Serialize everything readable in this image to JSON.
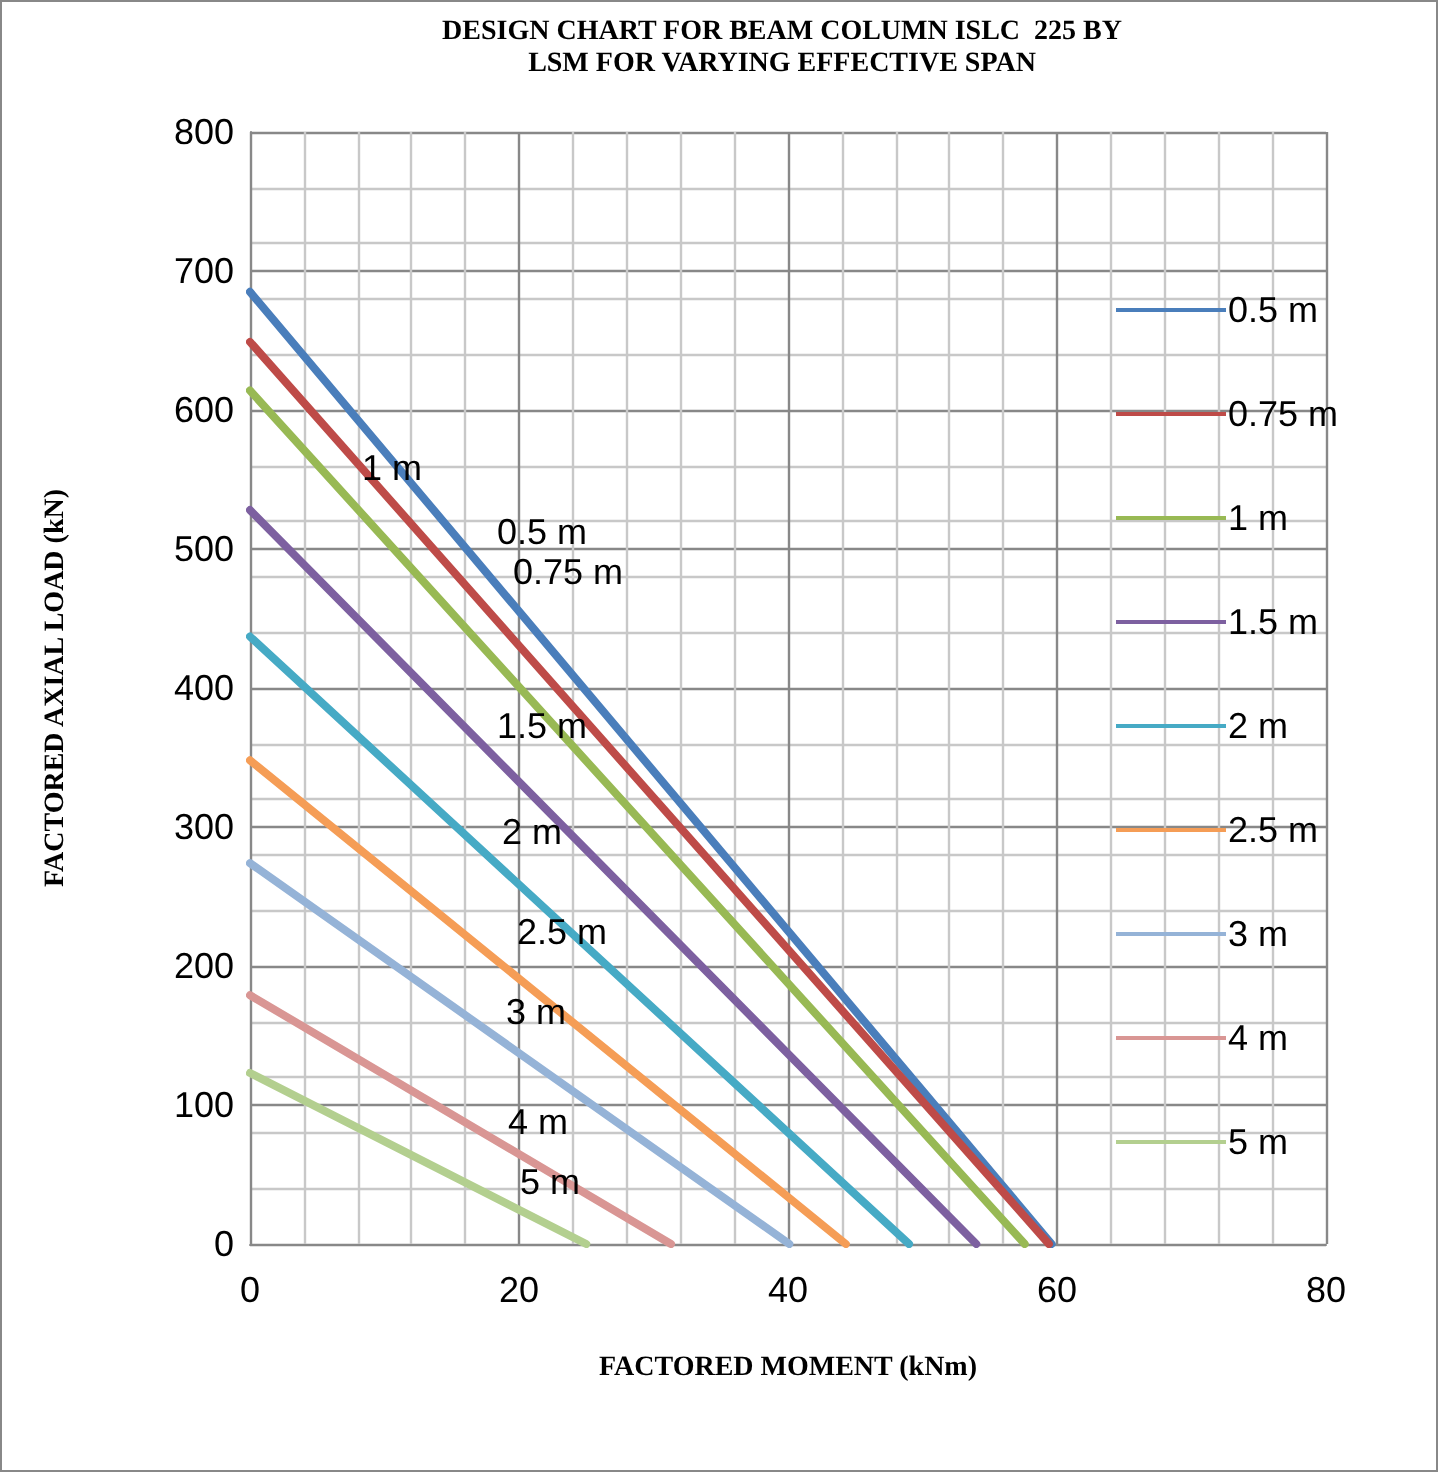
{
  "chart_data": {
    "type": "line",
    "title": "DESIGN CHART FOR BEAM COLUMN ISLC  225 BY\nLSM FOR VARYING EFFECTIVE SPAN",
    "xlabel": "FACTORED MOMENT (kNm)",
    "ylabel": "FACTORED AXIAL LOAD (kN)",
    "series": [
      {
        "name": "0.5 m",
        "color": "#4a7ebb",
        "x": [
          0,
          59.6
        ],
        "values": [
          685,
          0
        ]
      },
      {
        "name": "0.75 m",
        "color": "#be4b48",
        "x": [
          0,
          59.4
        ],
        "values": [
          649,
          0
        ]
      },
      {
        "name": "1 m",
        "color": "#98b954",
        "x": [
          0,
          57.6
        ],
        "values": [
          614,
          0
        ]
      },
      {
        "name": "1.5 m",
        "color": "#7d60a0",
        "x": [
          0,
          54
        ],
        "values": [
          528,
          0
        ]
      },
      {
        "name": "2 m",
        "color": "#46aac5",
        "x": [
          0,
          49
        ],
        "values": [
          437,
          0
        ]
      },
      {
        "name": "2.5 m",
        "color": "#f59d56",
        "x": [
          0,
          44.3
        ],
        "values": [
          348,
          0
        ]
      },
      {
        "name": "3 m",
        "color": "#95b3d7",
        "x": [
          0,
          40.1
        ],
        "values": [
          274,
          0
        ]
      },
      {
        "name": "4 m",
        "color": "#d99694",
        "x": [
          0,
          31.3
        ],
        "values": [
          179,
          0
        ]
      },
      {
        "name": "5 m",
        "color": "#b3cf8f",
        "x": [
          0,
          25
        ],
        "values": [
          123,
          0
        ]
      }
    ],
    "annotations": [
      "1 m",
      "0.5 m",
      "0.75 m",
      "1.5 m",
      "2 m",
      "2.5 m",
      "3 m",
      "4 m",
      "5 m"
    ],
    "xlim": [
      0,
      80
    ],
    "xticks": [
      0,
      20,
      40,
      60,
      80
    ],
    "ylim": [
      0,
      800
    ],
    "yticks": [
      0,
      100,
      200,
      300,
      400,
      500,
      600,
      700,
      800
    ],
    "grid": true,
    "legend": "right",
    "marker": "none",
    "line_style": "solid"
  }
}
